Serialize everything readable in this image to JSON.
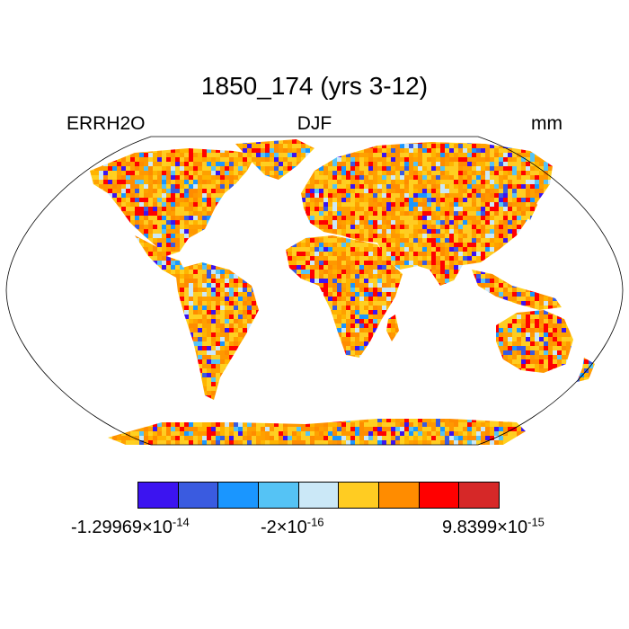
{
  "title": "1850_174 (yrs 3-12)",
  "left_label": "ERRH2O",
  "center_label": "DJF",
  "right_label": "mm",
  "map": {
    "projection": "Robinson",
    "colors": {
      "ocean": "#ffffff",
      "coastline": "#000000"
    },
    "field_palette": [
      "#ffa000",
      "#ffcc22",
      "#ffb400",
      "#ff8c00",
      "#ff0000",
      "#ffd020",
      "#ff9800"
    ],
    "cool_palette": [
      "#3c14f0",
      "#3a5be0",
      "#1a96ff",
      "#55c3f5",
      "#cbe8f7"
    ]
  },
  "colorbar": {
    "colors": [
      "#3c14f0",
      "#3a5be0",
      "#1a96ff",
      "#55c3f5",
      "#cbe8f7",
      "#ffcc22",
      "#ff8c00",
      "#ff0000",
      "#d62828"
    ],
    "labels": [
      {
        "mantissa": "-1.29969",
        "exponent": "-14"
      },
      {
        "mantissa": "-2",
        "exponent": "-16"
      },
      {
        "mantissa": "9.8399",
        "exponent": "-15"
      }
    ],
    "times_symbol": "×"
  }
}
